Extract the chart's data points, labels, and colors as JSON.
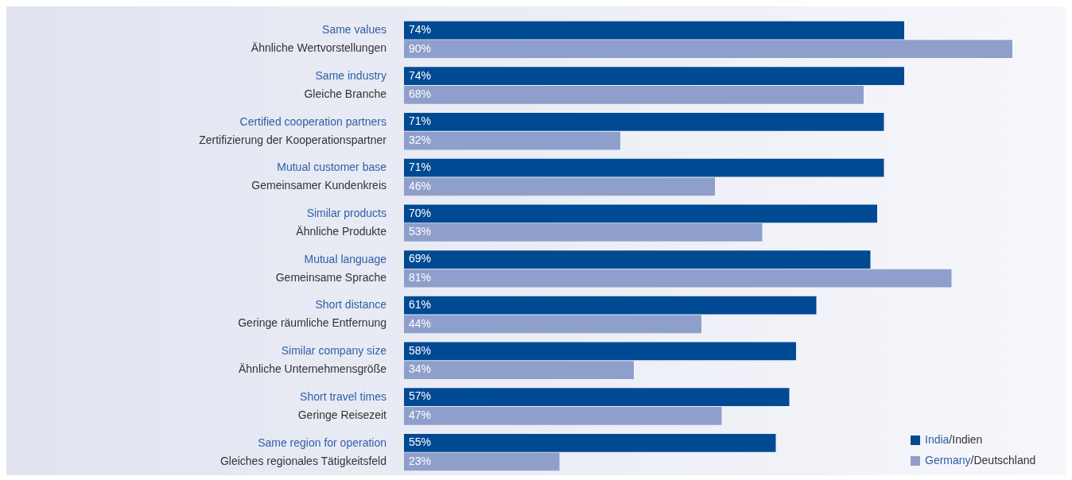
{
  "chart_data": {
    "type": "bar",
    "orientation": "horizontal",
    "categories": [
      "Same values\nÄhnliche Wertvorstellungen",
      "Same industry\nGleiche Branche",
      "Certified cooperation partners\nZertifizierung der Kooperationspartner",
      "Mutual customer base\nGemeinsamer Kundenkreis",
      "Similar products\nÄhnliche Produkte",
      "Mutual language\nGemeinsame Sprache",
      "Short distance\nGeringe räumliche Entfernung",
      "Similar company size\nÄhnliche Unternehmensgröße",
      "Short travel times\nGeringe Reisezeit",
      "Same region for operation\nGleiches regionales Tätigkeitsfeld"
    ],
    "series": [
      {
        "name": "India/Indien",
        "color": "#004a93",
        "values": [
          74,
          74,
          71,
          71,
          70,
          69,
          61,
          58,
          57,
          55
        ],
        "value_labels": [
          "74%",
          "74%",
          "71%",
          "71%",
          "70%",
          "69%",
          "61%",
          "58%",
          "57%",
          "55%"
        ]
      },
      {
        "name": "Germany/Deutschland",
        "color": "#8f9fcb",
        "values": [
          90,
          68,
          32,
          46,
          53,
          81,
          44,
          34,
          47,
          23
        ],
        "value_labels": [
          "90%",
          "68%",
          "32%",
          "46%",
          "53%",
          "81%",
          "44%",
          "34%",
          "47%",
          "23%"
        ]
      }
    ],
    "legend": "bottom right"
  }
}
